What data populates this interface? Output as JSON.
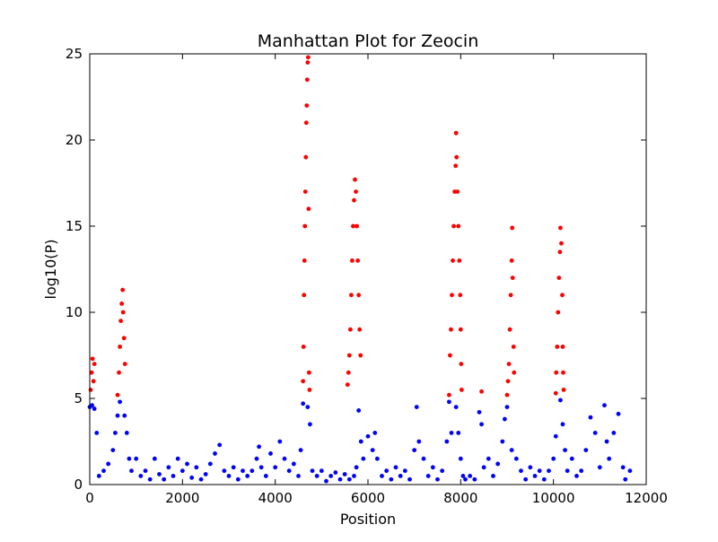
{
  "chart_data": {
    "type": "scatter",
    "title": "Manhattan Plot for Zeocin",
    "x_label": "Position",
    "y_label": "log10(P)",
    "xlim": [
      0,
      12000
    ],
    "ylim": [
      0,
      25
    ],
    "xticks": [
      0,
      2000,
      4000,
      6000,
      8000,
      10000,
      12000
    ],
    "yticks": [
      0,
      5,
      10,
      15,
      20,
      25
    ],
    "series": [
      {
        "color": "#0000ff",
        "x": [
          0,
          50,
          100,
          150,
          200,
          300,
          400,
          500,
          550,
          600,
          650,
          750,
          800,
          850,
          900,
          1000,
          1100,
          1200,
          1300,
          1400,
          1500,
          1600,
          1700,
          1800,
          1900,
          2000,
          2100,
          2200,
          2300,
          2400,
          2500,
          2600,
          2700,
          2800,
          2900,
          3000,
          3100,
          3200,
          3300,
          3400,
          3500,
          3600,
          3650,
          3700,
          3800,
          3900,
          4000,
          4100,
          4200,
          4300,
          4400,
          4500,
          4550,
          4600,
          4700,
          4750,
          4800,
          4900,
          5000,
          5100,
          5200,
          5300,
          5400,
          5500,
          5600,
          5700,
          5750,
          5800,
          5850,
          5900,
          6000,
          6100,
          6150,
          6200,
          6300,
          6400,
          6500,
          6600,
          6700,
          6800,
          6900,
          7000,
          7050,
          7100,
          7200,
          7300,
          7400,
          7500,
          7600,
          7700,
          7750,
          7800,
          7900,
          7950,
          8000,
          8050,
          8100,
          8200,
          8300,
          8400,
          8450,
          8500,
          8600,
          8700,
          8800,
          8900,
          8950,
          9000,
          9100,
          9200,
          9300,
          9400,
          9500,
          9600,
          9700,
          9800,
          9900,
          10000,
          10050,
          10150,
          10200,
          10250,
          10300,
          10400,
          10500,
          10600,
          10700,
          10800,
          10900,
          11000,
          11100,
          11150,
          11200,
          11300,
          11400,
          11500,
          11550,
          11650
        ],
        "values": [
          4.5,
          4.6,
          4.4,
          3,
          0.5,
          0.8,
          1.2,
          2,
          3,
          4,
          4.8,
          4,
          3,
          1.5,
          0.8,
          1.5,
          0.5,
          0.8,
          0.3,
          1.5,
          0.6,
          0.3,
          1,
          0.5,
          1.5,
          0.8,
          1.2,
          0.4,
          1,
          0.3,
          0.6,
          1.2,
          1.8,
          2.3,
          0.8,
          0.5,
          1,
          0.3,
          0.8,
          0.5,
          0.8,
          1.5,
          2.2,
          1,
          0.5,
          1.8,
          1,
          2.5,
          1.5,
          0.8,
          1.2,
          0.5,
          2,
          4.7,
          4.5,
          3.5,
          0.8,
          0.5,
          0.8,
          0.2,
          0.5,
          0.7,
          0.3,
          0.6,
          0.3,
          0.5,
          1,
          4.3,
          2.5,
          1.5,
          2.8,
          2,
          3,
          1.5,
          0.5,
          0.8,
          0.3,
          1,
          0.5,
          0.8,
          0.3,
          2,
          4.5,
          2.5,
          1.5,
          0.5,
          1,
          0.3,
          0.8,
          2.5,
          4.8,
          3,
          4.5,
          3,
          1.5,
          0.5,
          0.3,
          0.5,
          0.3,
          4.2,
          3.5,
          1,
          1.5,
          0.5,
          1.2,
          2.5,
          3.8,
          4.5,
          2,
          1.5,
          0.8,
          0.3,
          1,
          0.5,
          0.8,
          0.3,
          0.8,
          1.5,
          2.8,
          4.9,
          3.5,
          2,
          0.8,
          1.5,
          0.5,
          0.8,
          2,
          3.9,
          3,
          1,
          4.6,
          2.5,
          1.5,
          3,
          4.1,
          1,
          0.3,
          0.8
        ]
      },
      {
        "color": "#ff0000",
        "x": [
          20,
          40,
          60,
          80,
          100,
          600,
          630,
          650,
          670,
          690,
          710,
          720,
          740,
          760,
          4600,
          4610,
          4620,
          4630,
          4640,
          4650,
          4660,
          4670,
          4680,
          4690,
          4700,
          4710,
          4720,
          4730,
          4740,
          5560,
          5580,
          5600,
          5620,
          5640,
          5660,
          5680,
          5700,
          5720,
          5740,
          5760,
          5780,
          5800,
          5820,
          5840,
          7750,
          7770,
          7790,
          7810,
          7830,
          7850,
          7870,
          7890,
          7900,
          7910,
          7930,
          7950,
          7970,
          7990,
          8000,
          8010,
          8020,
          8450,
          9000,
          9020,
          9040,
          9060,
          9080,
          9100,
          9110,
          9120,
          9140,
          9150,
          10050,
          10060,
          10080,
          10100,
          10120,
          10140,
          10150,
          10170,
          10190,
          10200,
          10210,
          10220
        ],
        "values": [
          5.5,
          6.5,
          7.3,
          6,
          7,
          5.2,
          6.5,
          8,
          9.5,
          10.5,
          11.3,
          10,
          8.5,
          7,
          6,
          8,
          11,
          13,
          15,
          17,
          19,
          21,
          22,
          23.5,
          24.5,
          24.8,
          16,
          6.5,
          5.5,
          5.8,
          6.5,
          7.5,
          9,
          11,
          13,
          15,
          16.5,
          17.7,
          17,
          15,
          13,
          11,
          9,
          7.5,
          5.2,
          7.5,
          9,
          11,
          13,
          15,
          17,
          18.5,
          20.4,
          19,
          17,
          15,
          13,
          11,
          9,
          7,
          5.5,
          5.4,
          5.2,
          6,
          7,
          9,
          11,
          13,
          14.9,
          12,
          8,
          6.5,
          5.3,
          6.5,
          8,
          10,
          12,
          13.5,
          14.9,
          14,
          11,
          8,
          6.5,
          5.5
        ]
      }
    ]
  }
}
